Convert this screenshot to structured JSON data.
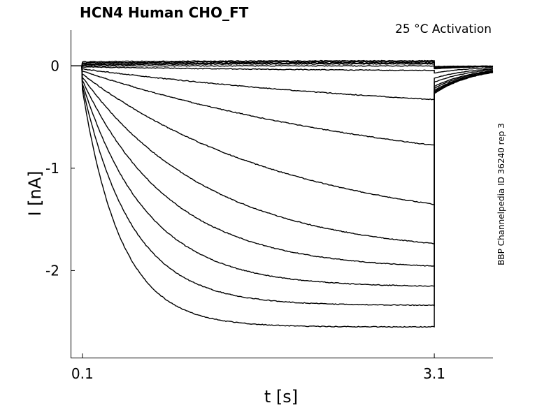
{
  "chart_data": {
    "type": "line",
    "title": "HCN4  Human  CHO_FT",
    "subtitle": "25 °C  Activation",
    "xlabel": "t [s]",
    "ylabel": "I [nA]",
    "side_note": "BBP Channelpedia ID 36240 rep 3",
    "xlim": [
      0.0,
      3.6
    ],
    "ylim": [
      -2.85,
      0.35
    ],
    "x_ticks": [
      {
        "value": 0.1,
        "label": "0.1"
      },
      {
        "value": 3.1,
        "label": "3.1"
      }
    ],
    "y_ticks": [
      {
        "value": 0,
        "label": "0"
      },
      {
        "value": -1,
        "label": "-1"
      },
      {
        "value": -2,
        "label": "-2"
      }
    ],
    "step": {
      "start_s": 0.1,
      "end_s": 3.1
    },
    "grid": false,
    "series": [
      {
        "initial": 0.04,
        "steady": 0.05,
        "tau": 1.0,
        "tail": -0.005
      },
      {
        "initial": 0.03,
        "steady": 0.04,
        "tau": 1.0,
        "tail": -0.01
      },
      {
        "initial": 0.02,
        "steady": 0.03,
        "tau": 1.0,
        "tail": -0.015
      },
      {
        "initial": 0.01,
        "steady": 0.02,
        "tau": 1.0,
        "tail": -0.02
      },
      {
        "initial": 0.0,
        "steady": 0.0,
        "tau": 1.0,
        "tail": -0.03
      },
      {
        "initial": -0.01,
        "steady": -0.06,
        "tau": 2.5,
        "tail": -0.07
      },
      {
        "initial": -0.03,
        "steady": -0.55,
        "tau": 3.5,
        "tail": -0.12
      },
      {
        "initial": -0.05,
        "steady": -1.2,
        "tau": 3.0,
        "tail": -0.16
      },
      {
        "initial": -0.08,
        "steady": -1.65,
        "tau": 1.8,
        "tail": -0.2
      },
      {
        "initial": -0.11,
        "steady": -1.85,
        "tau": 1.1,
        "tail": -0.22
      },
      {
        "initial": -0.14,
        "steady": -1.99,
        "tau": 0.75,
        "tail": -0.24
      },
      {
        "initial": -0.17,
        "steady": -2.16,
        "tau": 0.55,
        "tail": -0.25
      },
      {
        "initial": -0.2,
        "steady": -2.34,
        "tau": 0.42,
        "tail": -0.26
      },
      {
        "initial": -0.23,
        "steady": -2.55,
        "tau": 0.33,
        "tail": -0.27
      }
    ]
  }
}
